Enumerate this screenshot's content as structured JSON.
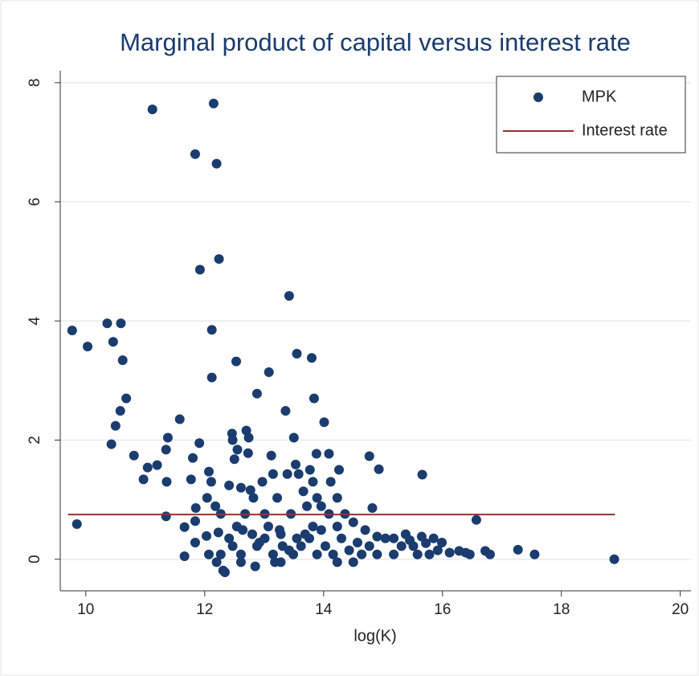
{
  "chart_data": {
    "type": "scatter",
    "title": "Marginal product of capital versus interest rate",
    "xlabel": "log(K)",
    "xlim": [
      9.57,
      20.18
    ],
    "ylim": [
      -0.53,
      8.2
    ],
    "xticks": [
      10,
      12,
      14,
      16,
      18,
      20
    ],
    "yticks": [
      0,
      2,
      4,
      6,
      8
    ],
    "grid": true,
    "legend": "top-right",
    "series": [
      {
        "name": "MPK",
        "type": "scatter",
        "color": "#1a3c6e",
        "x": [
          9.77,
          9.85,
          10.03,
          10.36,
          10.46,
          10.59,
          10.62,
          10.68,
          10.58,
          10.5,
          10.43,
          10.81,
          10.97,
          11.04,
          11.2,
          11.12,
          11.38,
          11.35,
          11.36,
          11.35,
          11.58,
          11.66,
          11.66,
          11.84,
          11.77,
          11.8,
          11.85,
          11.91,
          11.92,
          11.84,
          11.84,
          12.04,
          12.03,
          12.07,
          12.12,
          12.12,
          12.15,
          12.11,
          12.18,
          12.2,
          12.24,
          12.07,
          12.23,
          12.27,
          12.31,
          12.34,
          12.41,
          12.46,
          12.47,
          12.5,
          12.53,
          12.55,
          12.61,
          12.64,
          12.68,
          12.7,
          12.74,
          12.73,
          12.77,
          12.82,
          12.88,
          12.85,
          12.88,
          12.92,
          12.97,
          13.01,
          13.07,
          13.08,
          13.12,
          13.15,
          13.18,
          13.22,
          13.26,
          13.31,
          13.36,
          13.39,
          13.42,
          13.45,
          13.5,
          13.53,
          13.55,
          13.58,
          13.66,
          13.72,
          13.77,
          13.8,
          13.82,
          13.84,
          13.88,
          13.89,
          14.01,
          14.09,
          14.12,
          14.23,
          14.26,
          14.36,
          14.77,
          14.82,
          14.93,
          15.66,
          16.57,
          14.5,
          14.7,
          14.9,
          15.04,
          15.18,
          15.31,
          15.45,
          15.58,
          15.72,
          15.85,
          15.92,
          16.12,
          16.28,
          16.39,
          16.46,
          16.72,
          16.8,
          17.27,
          17.55,
          18.89,
          13.28,
          13.49,
          13.62,
          13.76,
          13.89,
          13.96,
          14.03,
          14.16,
          14.3,
          14.43,
          14.57,
          14.64,
          14.77,
          14.23,
          14.09,
          13.96,
          13.82,
          13.69,
          13.55,
          13.42,
          13.15,
          13.01,
          12.8,
          12.61,
          12.47,
          12.41,
          12.54,
          12.27,
          12.2,
          12.61,
          13.28,
          14.23,
          14.5,
          14.9,
          15.18,
          15.38,
          15.51,
          15.65,
          15.78,
          15.99
        ],
        "values": [
          3.84,
          0.59,
          3.57,
          3.96,
          3.65,
          3.96,
          3.34,
          2.7,
          2.49,
          2.24,
          1.93,
          1.74,
          1.34,
          1.54,
          1.58,
          7.55,
          2.04,
          1.84,
          1.3,
          0.72,
          2.35,
          0.54,
          0.05,
          6.8,
          1.34,
          1.7,
          0.86,
          1.95,
          4.86,
          0.64,
          0.28,
          1.03,
          0.39,
          1.47,
          3.85,
          3.05,
          7.65,
          1.3,
          0.89,
          6.64,
          5.04,
          0.08,
          0.45,
          0.76,
          -0.19,
          -0.22,
          1.24,
          2.11,
          2.0,
          1.68,
          3.32,
          1.84,
          1.2,
          0.49,
          0.76,
          2.16,
          2.04,
          1.78,
          1.16,
          1.03,
          2.78,
          -0.12,
          0.22,
          0.28,
          1.3,
          0.76,
          0.55,
          3.14,
          1.74,
          1.43,
          -0.05,
          1.03,
          0.49,
          0.22,
          2.49,
          1.43,
          4.42,
          0.76,
          2.04,
          1.59,
          3.45,
          1.43,
          1.14,
          0.89,
          1.5,
          3.38,
          1.3,
          2.7,
          1.77,
          1.03,
          2.3,
          1.77,
          1.3,
          1.03,
          1.5,
          0.76,
          1.73,
          0.86,
          1.51,
          1.42,
          0.66,
          0.62,
          0.49,
          0.38,
          0.35,
          0.08,
          0.22,
          0.32,
          0.08,
          0.27,
          0.35,
          0.15,
          0.11,
          0.14,
          0.11,
          0.08,
          0.14,
          0.08,
          0.16,
          0.08,
          0.0,
          0.42,
          0.08,
          0.22,
          0.35,
          0.08,
          0.49,
          0.22,
          0.08,
          0.35,
          0.15,
          0.28,
          0.08,
          0.22,
          0.55,
          0.76,
          0.89,
          0.55,
          0.42,
          0.35,
          0.15,
          0.08,
          0.35,
          0.42,
          0.08,
          0.22,
          0.35,
          0.55,
          0.08,
          -0.05,
          -0.05,
          -0.05,
          -0.05,
          -0.05,
          0.08,
          0.35,
          0.42,
          0.22,
          0.38,
          0.08,
          0.28
        ]
      },
      {
        "name": "Interest rate",
        "type": "line",
        "color": "#9b3030",
        "x": [
          9.7,
          18.9
        ],
        "values": [
          0.75,
          0.75
        ]
      }
    ]
  }
}
